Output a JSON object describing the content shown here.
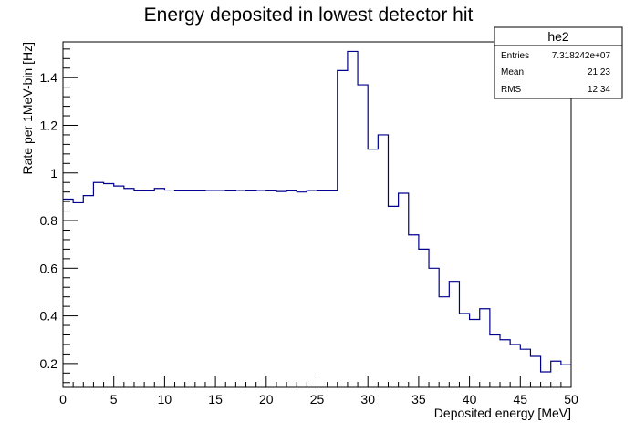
{
  "chart_data": {
    "type": "histogram",
    "title": "Energy deposited in lowest detector hit",
    "xlabel": "Deposited energy [MeV]",
    "ylabel": "Rate per 1MeV-bin [Hz]",
    "xlim": [
      0,
      50
    ],
    "ylim": [
      0.1,
      1.55
    ],
    "bin_width": 1,
    "x_ticks": [
      0,
      5,
      10,
      15,
      20,
      25,
      30,
      35,
      40,
      45,
      50
    ],
    "x_tick_labels": [
      "0",
      "5",
      "10",
      "15",
      "20",
      "25",
      "30",
      "35",
      "40",
      "45",
      "50"
    ],
    "y_ticks": [
      0.2,
      0.4,
      0.6,
      0.8,
      1.0,
      1.2,
      1.4
    ],
    "y_tick_labels": [
      "0.2",
      "0.4",
      "0.6",
      "0.8",
      "1",
      "1.2",
      "1.4"
    ],
    "series": [
      {
        "values": [
          0.89,
          0.875,
          0.905,
          0.96,
          0.955,
          0.945,
          0.935,
          0.925,
          0.925,
          0.935,
          0.928,
          0.925,
          0.925,
          0.925,
          0.927,
          0.927,
          0.925,
          0.927,
          0.925,
          0.927,
          0.925,
          0.922,
          0.925,
          0.92,
          0.927,
          0.925,
          0.925,
          1.43,
          1.51,
          1.37,
          1.1,
          1.16,
          0.86,
          0.915,
          0.74,
          0.68,
          0.6,
          0.48,
          0.545,
          0.41,
          0.385,
          0.43,
          0.32,
          0.3,
          0.28,
          0.26,
          0.23,
          0.165,
          0.21,
          0.195
        ],
        "color": "#00008b"
      }
    ],
    "grid": false,
    "legend": null
  },
  "stats_box": {
    "name": "he2",
    "rows": [
      {
        "label": "Entries",
        "value": "7.318242e+07"
      },
      {
        "label": "Mean",
        "value": "21.23"
      },
      {
        "label": "RMS",
        "value": "12.34"
      }
    ]
  }
}
